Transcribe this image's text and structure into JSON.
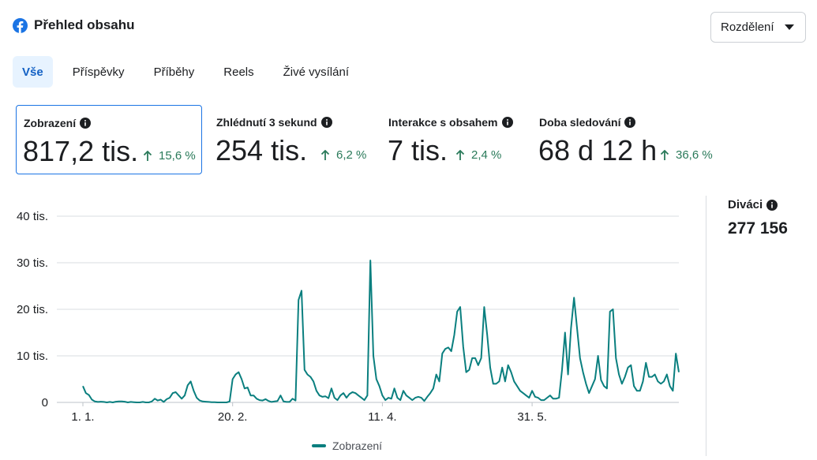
{
  "header": {
    "title": "Přehled obsahu",
    "icon": "facebook-icon"
  },
  "breakdown": {
    "label": "Rozdělení"
  },
  "tabs": [
    {
      "label": "Vše",
      "active": true
    },
    {
      "label": "Příspěvky",
      "active": false
    },
    {
      "label": "Příběhy",
      "active": false
    },
    {
      "label": "Reels",
      "active": false
    },
    {
      "label": "Živé vysílání",
      "active": false
    }
  ],
  "metrics": [
    {
      "label": "Zobrazení",
      "value": "817,2 tis.",
      "change": "15,6 %",
      "selected": true
    },
    {
      "label": "Zhlédnutí 3 sekund",
      "value": "254 tis.",
      "change": "6,2 %",
      "selected": false
    },
    {
      "label": "Interakce s obsahem",
      "value": "7 tis.",
      "change": "2,4 %",
      "selected": false
    },
    {
      "label": "Doba sledování",
      "value": "68 d 12 h",
      "change": "36,6 %",
      "selected": false
    }
  ],
  "viewers": {
    "label": "Diváci",
    "value": "277 156"
  },
  "colors": {
    "accent": "#1b74e4",
    "tab_active_bg": "#e7f3ff",
    "positive": "#2a7a5a",
    "series": "#0a7f7f"
  },
  "chart_data": {
    "type": "line",
    "series": [
      {
        "name": "Zobrazení",
        "values": [
          3500,
          2000,
          1600,
          600,
          200,
          100,
          150,
          100,
          0,
          100,
          0,
          150,
          200,
          200,
          150,
          0,
          100,
          50,
          0,
          0,
          100,
          0,
          0,
          200,
          800,
          400,
          600,
          100,
          700,
          1000,
          2000,
          2200,
          1500,
          800,
          1500,
          3700,
          4500,
          2500,
          1000,
          400,
          200,
          150,
          100,
          50,
          50,
          0,
          0,
          0,
          0,
          200,
          5000,
          6000,
          6500,
          5000,
          3000,
          3200,
          1500,
          1500,
          800,
          500,
          400,
          700,
          300,
          100,
          200,
          300,
          1500,
          200,
          100,
          100,
          800,
          400,
          22000,
          24000,
          7000,
          6000,
          5500,
          4500,
          2500,
          1500,
          1200,
          1300,
          900,
          3000,
          1000,
          500,
          1500,
          2000,
          1000,
          1800,
          2200,
          2000,
          1500,
          1000,
          500,
          1500,
          30500,
          10000,
          5000,
          3500,
          1500,
          500,
          1000,
          800,
          3000,
          1000,
          500,
          2500,
          1500,
          1000,
          500,
          1000,
          1200,
          1000,
          300,
          1200,
          2000,
          3000,
          6000,
          4500,
          10500,
          11500,
          11800,
          11000,
          14500,
          19500,
          20500,
          12000,
          6500,
          7000,
          9500,
          9500,
          8000,
          9500,
          20500,
          14500,
          7500,
          4000,
          4000,
          4500,
          7500,
          4500,
          8000,
          6500,
          4500,
          3500,
          2500,
          2000,
          1500,
          1000,
          2500,
          1200,
          1000,
          500,
          500,
          1000,
          1500,
          800,
          800,
          1000,
          7000,
          15000,
          6000,
          16000,
          22500,
          16000,
          9500,
          6500,
          4000,
          2000,
          3500,
          5000,
          10000,
          4800,
          3500,
          3000,
          19500,
          20000,
          9500,
          6000,
          4000,
          5500,
          7500,
          8000,
          3500,
          2500,
          2500,
          4500,
          8500,
          5500,
          5500,
          6000,
          4500,
          4000,
          4500,
          6000,
          3500,
          2500,
          10500,
          6500
        ]
      }
    ],
    "x_tick_labels": [
      "1. 1.",
      "20. 2.",
      "11. 4.",
      "31. 5."
    ],
    "y_tick_labels": [
      "0",
      "10 tis.",
      "20 tis.",
      "30 tis.",
      "40 tis."
    ],
    "ylim": [
      0,
      40000
    ],
    "grid": true,
    "legend_position": "bottom-center"
  }
}
